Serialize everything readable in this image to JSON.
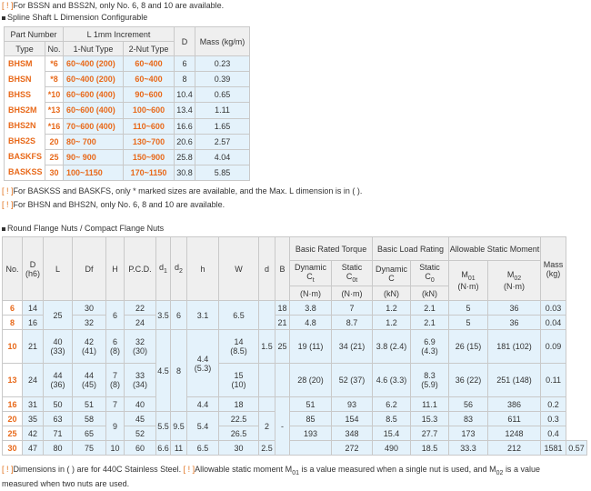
{
  "top_note": "For BSSN and BSS2N, only No. 6, 8 and 10 are available.",
  "warn_marker": "[ ! ]",
  "section1_title": "Spline Shaft L Dimension Configurable",
  "t1": {
    "h_part_number": "Part Number",
    "h_type": "Type",
    "h_no": "No.",
    "h_l_increment": "L 1mm Increment",
    "h_1nut": "1-Nut Type",
    "h_2nut": "2-Nut Type",
    "h_d": "D",
    "h_mass": "Mass (kg/m)",
    "types": [
      "BHSM",
      "BHSN",
      "BHSS",
      "BHS2M",
      "BHS2N",
      "BHS2S",
      "BASKFS",
      "BASKSS"
    ],
    "rows": [
      {
        "no": "*6",
        "one": "60~400 (200)",
        "two": "60~400",
        "d": "6",
        "mass": "0.23"
      },
      {
        "no": "*8",
        "one": "60~400 (200)",
        "two": "60~400",
        "d": "8",
        "mass": "0.39"
      },
      {
        "no": "*10",
        "one": "60~600 (400)",
        "two": "90~600",
        "d": "10.4",
        "mass": "0.65"
      },
      {
        "no": "*13",
        "one": "60~600 (400)",
        "two": "100~600",
        "d": "13.4",
        "mass": "1.11"
      },
      {
        "no": "*16",
        "one": "70~600 (400)",
        "two": "110~600",
        "d": "16.6",
        "mass": "1.65"
      },
      {
        "no": "20",
        "one": "80~ 700",
        "two": "130~700",
        "d": "20.6",
        "mass": "2.57"
      },
      {
        "no": "25",
        "one": "90~ 900",
        "two": "150~900",
        "d": "25.8",
        "mass": "4.04"
      },
      {
        "no": "30",
        "one": "100~1150",
        "two": "170~1150",
        "d": "30.8",
        "mass": "5.85"
      }
    ]
  },
  "note2": "For BASKSS and BASKFS, only * marked sizes are available, and the Max. L dimension is in ( ).",
  "note3": "For BHSN and BHS2N, only No. 6, 8 and 10 are available.",
  "section2_title": "Round Flange Nuts / Compact Flange Nuts",
  "t2": {
    "h_no": "No.",
    "h_D": "D",
    "h_D2": "(h6)",
    "h_L": "L",
    "h_Df": "Df",
    "h_H": "H",
    "h_pcd": "P.C.D.",
    "h_d1": "d",
    "h_d1s": "1",
    "h_d2": "d",
    "h_d2s": "2",
    "h_h": "h",
    "h_W": "W",
    "h_d": "d",
    "h_B": "B",
    "h_torque": "Basic Rated Torque",
    "h_load": "Basic Load Rating",
    "h_moment": "Allowable Static Moment",
    "h_mass": "Mass",
    "h_mass_unit": "(kg)",
    "h_dyn": "Dynamic",
    "h_static": "Static",
    "h_ct": "C",
    "h_ct_s": "t",
    "h_c0t": "C",
    "h_c0t_s": "0t",
    "h_nm": "(N·m)",
    "h_c": "C",
    "h_c0": "C",
    "h_c0_s": "0",
    "h_kn": "(kN)",
    "h_m01": "M",
    "h_m01_s": "01",
    "h_m02": "M",
    "h_m02_s": "02",
    "v": {
      "r6": {
        "no": "6",
        "D": "14",
        "Df": "30",
        "pcd": "22",
        "W": "6.5",
        "B": "18",
        "ct": "3.8",
        "c0t": "7",
        "c": "1.2",
        "c0": "2.1",
        "m01": "5",
        "m02": "36",
        "mass": "0.03"
      },
      "r8": {
        "no": "8",
        "D": "16",
        "Df": "32",
        "pcd": "24",
        "B": "21",
        "ct": "4.8",
        "c0t": "8.7",
        "c": "1.2",
        "c0": "2.1",
        "m01": "5",
        "m02": "36",
        "mass": "0.04"
      },
      "L68": "25",
      "H68": "6",
      "d1_68": "3.5",
      "d2_68": "6",
      "h68": "3.1",
      "r10": {
        "no": "10",
        "D": "21",
        "L": "40",
        "L2": "(33)",
        "Df": "42",
        "Df2": "(41)",
        "H": "6",
        "H2": "(8)",
        "pcd": "32",
        "pcd2": "(30)",
        "W": "14",
        "W2": "(8.5)",
        "d": "1.5",
        "B": "25",
        "ct": "19 (11)",
        "c0t": "34 (21)",
        "c": "3.8 (2.4)",
        "c0": "6.9",
        "c02": "(4.3)",
        "m01": "26 (15)",
        "m02": "181 (102)",
        "mass": "0.09"
      },
      "h10_13": "4.4",
      "h10_13b": "(5.3)",
      "r13": {
        "no": "13",
        "D": "24",
        "L": "44",
        "L2": "(36)",
        "Df": "44",
        "Df2": "(45)",
        "H": "7",
        "H2": "(8)",
        "pcd": "33",
        "pcd2": "(34)",
        "W": "15",
        "W2": "(10)",
        "ct": "28 (20)",
        "c0t": "52 (37)",
        "c": "4.6 (3.3)",
        "c0": "8.3",
        "c02": "(5.9)",
        "m01": "36 (22)",
        "m02": "251 (148)",
        "mass": "0.11"
      },
      "d1_1016": "4.5",
      "d2_1016": "8",
      "r16": {
        "no": "16",
        "D": "31",
        "L": "50",
        "Df": "51",
        "H": "7",
        "pcd": "40",
        "h": "4.4",
        "W": "18",
        "ct": "51",
        "c0t": "93",
        "c": "6.2",
        "c0": "11.1",
        "m01": "56",
        "m02": "386",
        "mass": "0.2"
      },
      "dash": "-",
      "r20": {
        "no": "20",
        "D": "35",
        "L": "63",
        "Df": "58",
        "pcd": "45",
        "W": "22.5",
        "ct": "85",
        "c0t": "154",
        "c": "8.5",
        "c0": "15.3",
        "m01": "83",
        "m02": "611",
        "mass": "0.3"
      },
      "H2025": "9",
      "d1_2025": "5.5",
      "d2_2025": "9.5",
      "h2025": "5.4",
      "d2025": "2",
      "r25": {
        "no": "25",
        "D": "42",
        "L": "71",
        "Df": "65",
        "pcd": "52",
        "W": "26.5",
        "ct": "193",
        "c0t": "348",
        "c": "15.4",
        "c0": "27.7",
        "m01": "173",
        "m02": "1248",
        "mass": "0.4"
      },
      "r30": {
        "no": "30",
        "D": "47",
        "L": "80",
        "Df": "75",
        "H": "10",
        "pcd": "60",
        "d1": "6.6",
        "d2": "11",
        "h": "6.5",
        "W": "30",
        "d": "2.5",
        "ct": "272",
        "c0t": "490",
        "c": "18.5",
        "c0": "33.3",
        "m01": "212",
        "m02": "1581",
        "mass": "0.57"
      }
    }
  },
  "note4a": "Dimensions in ( ) are for 440C Stainless Steel.",
  "note4b": "Allowable static moment M",
  "note4b_s": "01",
  "note4c": "is a value measured when a single nut is used, and M",
  "note4c_s": "02",
  "note4d": "is a value",
  "note5": "measured when two nuts are used."
}
